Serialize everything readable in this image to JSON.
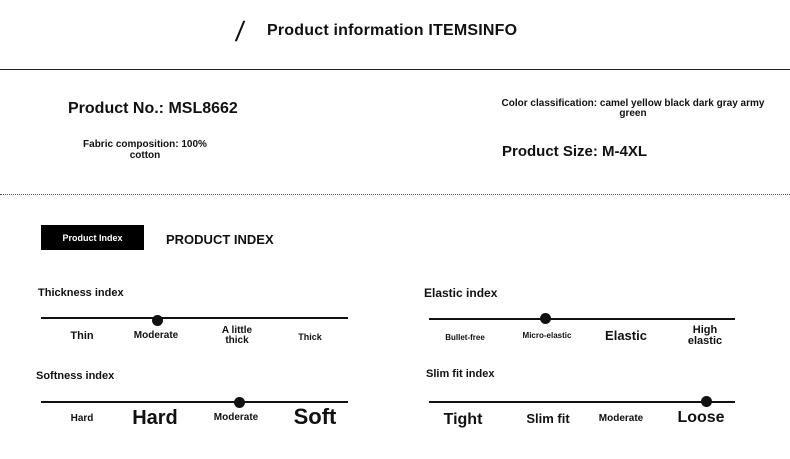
{
  "header": {
    "slash": "/",
    "title": "Product information ITEMSINFO"
  },
  "info": {
    "product_no": "Product No.: MSL8662",
    "fabric": "Fabric composition: 100% cotton",
    "color": "Color classification: camel yellow black dark gray army green",
    "size": "Product Size: M-4XL"
  },
  "index_section": {
    "badge": "Product Index",
    "heading": "PRODUCT INDEX"
  },
  "indices": {
    "thickness": {
      "label": "Thickness index",
      "options": [
        "Thin",
        "Moderate",
        "A little thick",
        "Thick"
      ],
      "selected": "Moderate"
    },
    "elastic": {
      "label": "Elastic index",
      "options": [
        "Bullet-free",
        "Micro-elastic",
        "Elastic",
        "High elastic"
      ],
      "selected": "Micro-elastic"
    },
    "softness": {
      "label": "Softness index",
      "options": [
        "Hard",
        "Hard",
        "Moderate",
        "Soft"
      ],
      "selected": "Moderate"
    },
    "slimfit": {
      "label": "Slim fit index",
      "options": [
        "Tight",
        "Slim fit",
        "Moderate",
        "Loose"
      ],
      "selected": "Loose"
    }
  }
}
